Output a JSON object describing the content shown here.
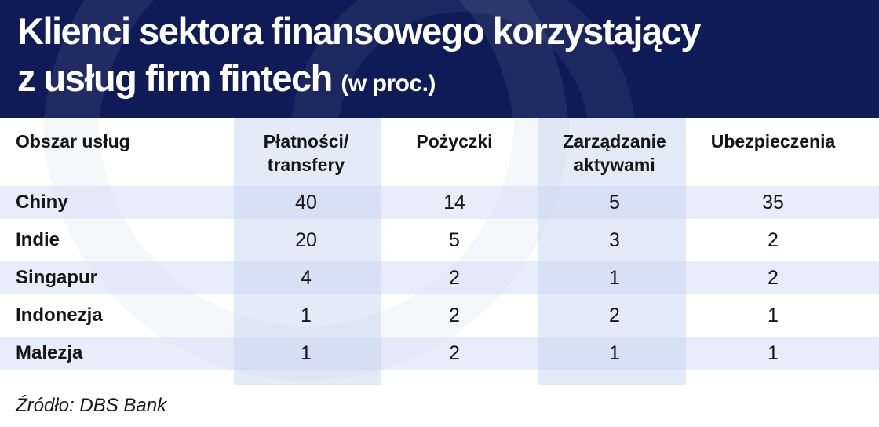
{
  "title": {
    "line1": "Klienci sektora finansowego korzystający",
    "line2": "z usług firm fintech",
    "unit": "(w proc.)"
  },
  "source": "Źródło: DBS Bank",
  "colors": {
    "header_bg": "#0e1b57",
    "column_shade": "#c4d2f0",
    "row_band": "#d4def5"
  },
  "chart_data": {
    "type": "table",
    "title": "Klienci sektora finansowego korzystający z usług firm fintech",
    "unit": "(w proc.)",
    "columns": [
      "Obszar usług",
      "Płatności/ transfery",
      "Pożyczki",
      "Zarządzanie aktywami",
      "Ubezpieczenia"
    ],
    "rows": [
      {
        "label": "Chiny",
        "values": [
          40,
          14,
          5,
          35
        ]
      },
      {
        "label": "Indie",
        "values": [
          20,
          5,
          3,
          2
        ]
      },
      {
        "label": "Singapur",
        "values": [
          4,
          2,
          1,
          2
        ]
      },
      {
        "label": "Indonezja",
        "values": [
          1,
          2,
          2,
          1
        ]
      },
      {
        "label": "Malezja",
        "values": [
          1,
          2,
          1,
          1
        ]
      }
    ]
  }
}
